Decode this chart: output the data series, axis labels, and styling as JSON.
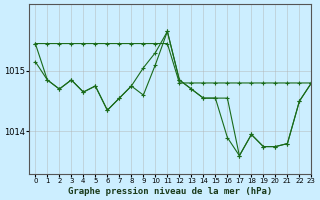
{
  "title": "Graphe pression niveau de la mer (hPa)",
  "background_color": "#cceeff",
  "grid_color": "#b0b0b0",
  "line_color": "#1a6b1a",
  "xlim": [
    -0.5,
    23
  ],
  "ylim": [
    1013.3,
    1016.1
  ],
  "yticks": [
    1014,
    1015
  ],
  "xticks": [
    0,
    1,
    2,
    3,
    4,
    5,
    6,
    7,
    8,
    9,
    10,
    11,
    12,
    13,
    14,
    15,
    16,
    17,
    18,
    19,
    20,
    21,
    22,
    23
  ],
  "series1": [
    1015.45,
    1015.45,
    1015.45,
    1015.45,
    1015.45,
    1015.45,
    1015.45,
    1015.45,
    1015.45,
    1015.45,
    1015.45,
    1015.45,
    1014.8,
    1014.8,
    1014.8,
    1014.8,
    1014.8,
    1014.8,
    1014.8,
    1014.8,
    1014.8,
    1014.8,
    1014.8,
    1014.8
  ],
  "series2": [
    1015.15,
    1014.85,
    1014.7,
    1014.85,
    1014.65,
    1014.75,
    1014.35,
    1014.55,
    1014.75,
    1015.05,
    1015.3,
    1015.65,
    1014.85,
    1014.7,
    1014.55,
    1014.55,
    1013.9,
    1013.6,
    1013.95,
    1013.75,
    1013.75,
    1013.8,
    1014.5,
    1014.8
  ],
  "series3": [
    1015.45,
    1014.85,
    1014.7,
    1014.85,
    1014.65,
    1014.75,
    1014.35,
    1014.55,
    1014.75,
    1014.6,
    1015.1,
    1015.65,
    1014.85,
    1014.7,
    1014.55,
    1014.55,
    1014.55,
    1013.6,
    1013.95,
    1013.75,
    1013.75,
    1013.8,
    1014.5,
    1014.8
  ]
}
